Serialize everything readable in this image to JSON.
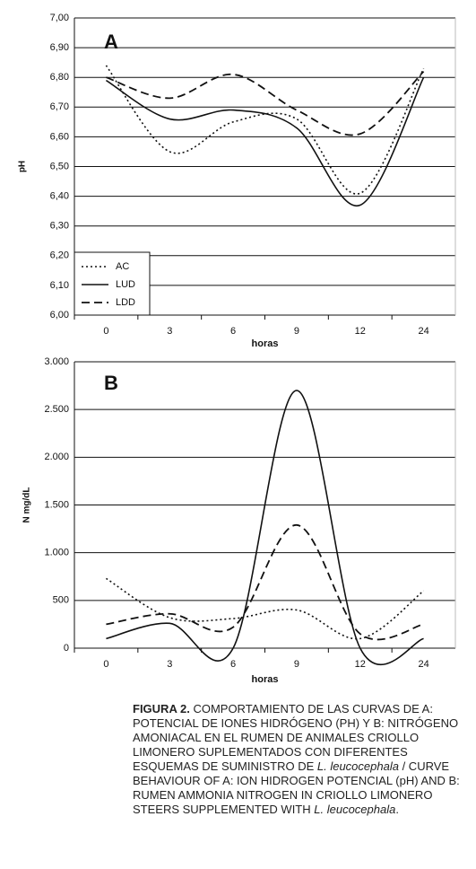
{
  "chart_data": [
    {
      "type": "line",
      "title": "A",
      "x_label": "horas",
      "y_label": "pH",
      "categories": [
        "0",
        "3",
        "6",
        "9",
        "12",
        "24"
      ],
      "ylim": [
        6.0,
        7.0
      ],
      "yticks": [
        {
          "value": 6.0,
          "label": "6,00"
        },
        {
          "value": 6.1,
          "label": "6,10"
        },
        {
          "value": 6.2,
          "label": "6,20"
        },
        {
          "value": 6.3,
          "label": "6,30"
        },
        {
          "value": 6.4,
          "label": "6,40"
        },
        {
          "value": 6.5,
          "label": "6,50"
        },
        {
          "value": 6.6,
          "label": "6,60"
        },
        {
          "value": 6.7,
          "label": "6,70"
        },
        {
          "value": 6.8,
          "label": "6,80"
        },
        {
          "value": 6.9,
          "label": "6,90"
        },
        {
          "value": 7.0,
          "label": "7,00"
        }
      ],
      "grid": true,
      "legend": "lower left",
      "series": [
        {
          "name": "AC",
          "color": "#111111",
          "style": "dotted",
          "values": [
            6.84,
            6.55,
            6.65,
            6.66,
            6.41,
            6.83
          ]
        },
        {
          "name": "LUD",
          "color": "#111111",
          "style": "solid",
          "values": [
            6.79,
            6.66,
            6.69,
            6.63,
            6.37,
            6.8
          ]
        },
        {
          "name": "LDD",
          "color": "#111111",
          "style": "dashed",
          "values": [
            6.8,
            6.73,
            6.81,
            6.69,
            6.61,
            6.82
          ]
        }
      ]
    },
    {
      "type": "line",
      "title": "B",
      "x_label": "horas",
      "y_label": "N mg/dL",
      "categories": [
        "0",
        "3",
        "6",
        "9",
        "12",
        "24"
      ],
      "ylim": [
        0,
        3000
      ],
      "yticks": [
        0,
        500,
        {
          "value": 1000,
          "label": "1.000"
        },
        {
          "value": 1500,
          "label": "1.500"
        },
        {
          "value": 2000,
          "label": "2.000"
        },
        {
          "value": 2500,
          "label": "2.500"
        },
        {
          "value": 3000,
          "label": "3.000"
        }
      ],
      "grid": true,
      "series": [
        {
          "color": "#111111",
          "style": "dotted",
          "values": [
            730,
            320,
            310,
            400,
            100,
            600
          ]
        },
        {
          "color": "#111111",
          "style": "solid",
          "values": [
            100,
            260,
            0,
            2700,
            0,
            100
          ]
        },
        {
          "color": "#111111",
          "style": "dashed",
          "values": [
            250,
            360,
            220,
            1290,
            150,
            250
          ]
        }
      ]
    }
  ],
  "caption": {
    "label": "FIGURA 2.",
    "parts": [
      "COMPORTAMIENTO DE LAS CURVAS DE A: POTENCIAL DE IONES HIDRÓGENO (PH) Y B: NITRÓGENO AMONIACAL EN EL RUMEN DE ANIMALES CRIOLLO LIMONERO SUPLEMENTADOS CON DIFERENTES ESQUEMAS DE SUMINISTRO DE",
      "L. leucocephala",
      "/ CURVE BEHAVIOUR OF A: ION HIDROGEN POTENCIAL (pH) AND B: RUMEN AMMONIA  NITROGEN IN CRIOLLO LIMONERO STEERS SUPPLEMENTED WITH",
      "L. leucocephala",
      "."
    ]
  }
}
